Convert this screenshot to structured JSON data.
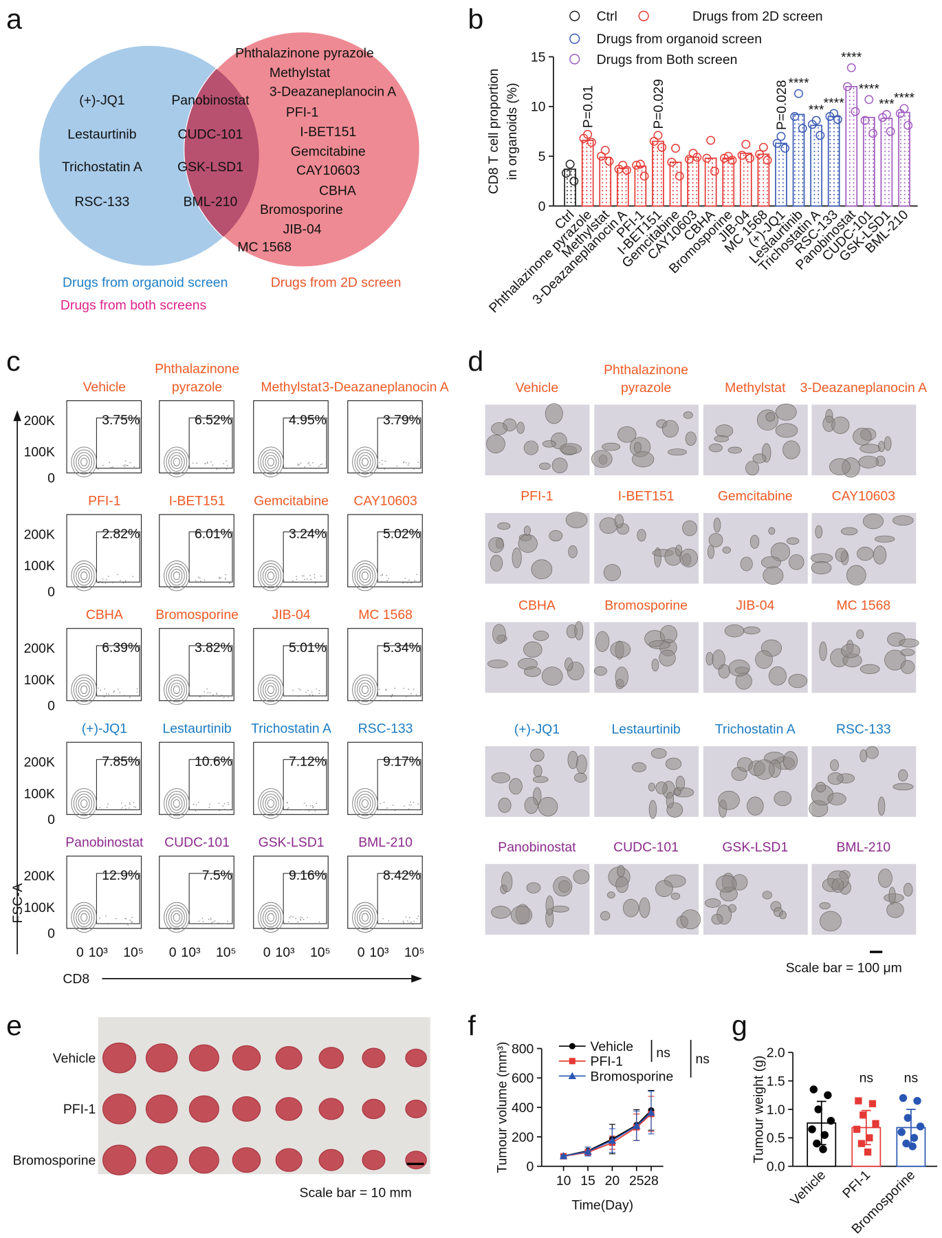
{
  "panel_labels": [
    "a",
    "b",
    "c",
    "d",
    "e",
    "f",
    "g"
  ],
  "venn": {
    "left": [
      "(+)-JQ1",
      "Lestaurtinib",
      "Trichostatin A",
      "RSC-133"
    ],
    "both": [
      "Panobinostat",
      "CUDC-101",
      "GSK-LSD1",
      "BML-210"
    ],
    "right": [
      "Phthalazinone pyrazole",
      "Methylstat",
      "3-Deazaneplanocin A",
      "PFI-1",
      "I-BET151",
      "Gemcitabine",
      "CAY10603",
      "CBHA",
      "Bromosporine",
      "JIB-04",
      "MC 1568"
    ],
    "legend": [
      {
        "text": "Drugs from organoid screen",
        "color": "#1f7fc4"
      },
      {
        "text": "Drugs from 2D screen",
        "color": "#e8542a"
      },
      {
        "text": "Drugs from both screens",
        "color": "#e0218a"
      }
    ]
  },
  "chart_data": [
    {
      "type": "bar",
      "ylabel": [
        "CD8 T cell proportion",
        "in organoids (%)"
      ],
      "categories": [
        "Ctrl",
        "Phthalazinone pyrazole",
        "Methylstat",
        "3-Deazaneplanocin A",
        "PFI-1",
        "I-BET151",
        "Gemcitabine",
        "CAY10603",
        "CBHA",
        "Bromosporine",
        "JIB-04",
        "MC 1568",
        "(+)-JQ1",
        "Lestaurtinib",
        "Trichostatin A",
        "RSC-133",
        "Panobinostat",
        "CUDC-101",
        "GSK-LSD1",
        "BML-210"
      ],
      "series": [
        {
          "name": "Ctrl",
          "color": "#222222",
          "values": [
            3.7,
            null,
            null,
            null,
            null,
            null,
            null,
            null,
            null,
            null,
            null,
            null,
            null,
            null,
            null,
            null,
            null,
            null,
            null,
            null
          ]
        },
        {
          "name": "Drugs from 2D screen",
          "color": "#e53935",
          "values": [
            null,
            6.6,
            4.9,
            3.8,
            4.0,
            6.5,
            4.4,
            4.9,
            4.8,
            4.8,
            5.3,
            5.2,
            null,
            null,
            null,
            null,
            null,
            null,
            null,
            null
          ]
        },
        {
          "name": "Drugs from organoid screen",
          "color": "#3b5bb5",
          "values": [
            null,
            null,
            null,
            null,
            null,
            null,
            null,
            null,
            null,
            null,
            null,
            null,
            6.3,
            9.2,
            8.1,
            9.0,
            null,
            null,
            null,
            null
          ]
        },
        {
          "name": "Drugs from Both screen",
          "color": "#a05cc0",
          "values": [
            null,
            null,
            null,
            null,
            null,
            null,
            null,
            null,
            null,
            null,
            null,
            null,
            null,
            null,
            null,
            null,
            12.0,
            8.9,
            8.8,
            9.4
          ]
        }
      ],
      "points": [
        [
          4.2,
          3.3,
          2.5
        ],
        [
          7.2,
          6.8,
          6.4
        ],
        [
          5.6,
          5.0,
          4.5
        ],
        [
          4.1,
          3.7,
          3.6
        ],
        [
          4.2,
          4.1,
          3.0
        ],
        [
          7.1,
          6.5,
          5.9
        ],
        [
          5.8,
          4.4,
          3.0
        ],
        [
          5.3,
          4.7,
          4.9
        ],
        [
          6.6,
          4.8,
          3.5
        ],
        [
          5.0,
          4.8,
          4.6
        ],
        [
          6.2,
          5.1,
          4.8
        ],
        [
          5.9,
          5.2,
          4.6
        ],
        [
          7.0,
          6.3,
          5.8
        ],
        [
          11.3,
          9.0,
          7.8
        ],
        [
          8.6,
          8.2,
          7.1
        ],
        [
          9.3,
          9.0,
          8.7
        ],
        [
          13.9,
          12.0,
          9.5
        ],
        [
          10.7,
          8.6,
          7.3
        ],
        [
          9.2,
          8.9,
          7.5
        ],
        [
          9.8,
          9.3,
          8.1
        ]
      ],
      "annotations": [
        {
          "index": 1,
          "text": "P=0.01"
        },
        {
          "index": 5,
          "text": "P=0.029"
        },
        {
          "index": 12,
          "text": "P=0.028"
        },
        {
          "index": 13,
          "text": "****"
        },
        {
          "index": 14,
          "text": "***"
        },
        {
          "index": 15,
          "text": "****"
        },
        {
          "index": 16,
          "text": "****"
        },
        {
          "index": 17,
          "text": "****"
        },
        {
          "index": 18,
          "text": "***"
        },
        {
          "index": 19,
          "text": "****"
        }
      ],
      "ylim": [
        0,
        15
      ],
      "yticks": [
        0,
        5,
        10,
        15
      ]
    },
    {
      "type": "line",
      "xlabel": "Time(Day)",
      "ylabel": "Tumour volume (mm³)",
      "x": [
        10,
        15,
        20,
        25,
        28
      ],
      "series": [
        {
          "name": "Vehicle",
          "color": "#000000",
          "values": [
            70,
            105,
            185,
            280,
            380
          ],
          "errors": [
            8,
            25,
            100,
            105,
            135
          ]
        },
        {
          "name": "PFI-1",
          "color": "#e53935",
          "values": [
            68,
            95,
            160,
            265,
            355
          ],
          "errors": [
            5,
            20,
            45,
            90,
            120
          ]
        },
        {
          "name": "Bromosporine",
          "color": "#2a56b3",
          "values": [
            70,
            100,
            175,
            275,
            365
          ],
          "errors": [
            6,
            30,
            80,
            100,
            145
          ]
        }
      ],
      "annotations": [
        "ns",
        "ns"
      ],
      "xlim": [
        5.5,
        30.5
      ],
      "xticks": [
        10,
        15,
        20,
        25,
        28
      ],
      "ylim": [
        0,
        800
      ],
      "yticks": [
        0,
        200,
        400,
        600,
        800
      ]
    },
    {
      "type": "bar",
      "ylabel": "Tumour weight (g)",
      "categories": [
        "Vehicle",
        "PFI-1",
        "Bromosporine"
      ],
      "colors": [
        "#000000",
        "#e53935",
        "#2a56b3"
      ],
      "values": [
        0.76,
        0.68,
        0.68
      ],
      "errors": [
        0.38,
        0.3,
        0.32
      ],
      "points": [
        [
          1.35,
          1.25,
          1.0,
          0.8,
          0.65,
          0.55,
          0.4,
          0.3
        ],
        [
          1.15,
          1.1,
          0.9,
          0.75,
          0.65,
          0.5,
          0.4,
          0.25
        ],
        [
          1.2,
          1.15,
          0.85,
          0.7,
          0.6,
          0.5,
          0.4,
          0.35
        ]
      ],
      "annotations": [
        {
          "index": 1,
          "text": "ns"
        },
        {
          "index": 2,
          "text": "ns"
        }
      ],
      "ylim": [
        0,
        2
      ],
      "yticks": [
        {
          "value": 0,
          "label": "0.0"
        },
        0.5,
        {
          "value": 1,
          "label": "1.0"
        },
        1.5,
        {
          "value": 2,
          "label": "2.0"
        }
      ]
    }
  ],
  "flow": {
    "ylabel": "FSC-A",
    "xlabel": "CD8",
    "yticks": [
      "200K",
      "100K",
      "0"
    ],
    "xticks": [
      "0",
      "10³",
      "10⁵"
    ],
    "plots": [
      {
        "label": [
          "Vehicle"
        ],
        "percent": "3.75%",
        "color": "#ee5a24"
      },
      {
        "label": [
          "Phthalazinone",
          "pyrazole"
        ],
        "percent": "6.52%",
        "color": "#ee5a24"
      },
      {
        "label": [
          "Methylstat"
        ],
        "percent": "4.95%",
        "color": "#ee5a24"
      },
      {
        "label": [
          "3-Deazaneplanocin A"
        ],
        "percent": "3.79%",
        "color": "#ee5a24"
      },
      {
        "label": [
          "PFI-1"
        ],
        "percent": "2.82%",
        "color": "#ee5a24"
      },
      {
        "label": [
          "I-BET151"
        ],
        "percent": "6.01%",
        "color": "#ee5a24"
      },
      {
        "label": [
          "Gemcitabine"
        ],
        "percent": "3.24%",
        "color": "#ee5a24"
      },
      {
        "label": [
          "CAY10603"
        ],
        "percent": "5.02%",
        "color": "#ee5a24"
      },
      {
        "label": [
          "CBHA"
        ],
        "percent": "6.39%",
        "color": "#ee5a24"
      },
      {
        "label": [
          "Bromosporine"
        ],
        "percent": "3.82%",
        "color": "#ee5a24"
      },
      {
        "label": [
          "JIB-04"
        ],
        "percent": "5.01%",
        "color": "#ee5a24"
      },
      {
        "label": [
          "MC 1568"
        ],
        "percent": "5.34%",
        "color": "#ee5a24"
      },
      {
        "label": [
          "(+)-JQ1"
        ],
        "percent": "7.85%",
        "color": "#1b7bc2"
      },
      {
        "label": [
          "Lestaurtinib"
        ],
        "percent": "10.6%",
        "color": "#1b7bc2"
      },
      {
        "label": [
          "Trichostatin A"
        ],
        "percent": "7.12%",
        "color": "#1b7bc2"
      },
      {
        "label": [
          "RSC-133"
        ],
        "percent": "9.17%",
        "color": "#1b7bc2"
      },
      {
        "label": [
          "Panobinostat"
        ],
        "percent": "12.9%",
        "color": "#8b2a8c"
      },
      {
        "label": [
          "CUDC-101"
        ],
        "percent": "7.5%",
        "color": "#8b2a8c"
      },
      {
        "label": [
          "GSK-LSD1"
        ],
        "percent": "9.16%",
        "color": "#8b2a8c"
      },
      {
        "label": [
          "BML-210"
        ],
        "percent": "8.42%",
        "color": "#8b2a8c"
      }
    ]
  },
  "organoids": {
    "scale_bar": "Scale bar = 100 μm"
  },
  "tumours": {
    "rows": [
      "Vehicle",
      "PFI-1",
      "Bromosporine"
    ],
    "scale_bar": "Scale bar = 10 mm"
  }
}
